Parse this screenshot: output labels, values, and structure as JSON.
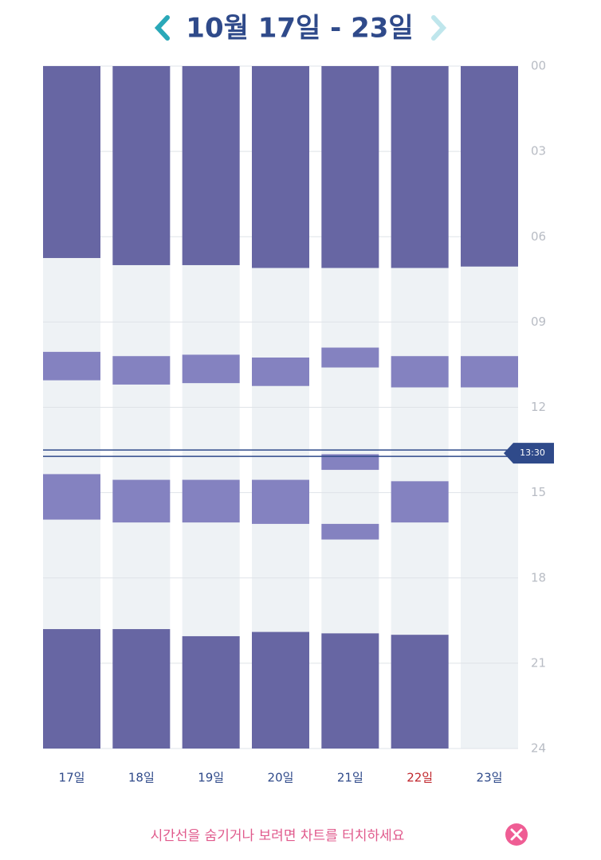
{
  "chart_data": {
    "type": "sleep",
    "title": "10월 17일 - 23일",
    "categories": [
      "17일",
      "18일",
      "19일",
      "20일",
      "21일",
      "22일",
      "23일"
    ],
    "highlight": {
      "index": 5,
      "color": "#c0262c"
    },
    "segments": [
      [
        {
          "start": 0,
          "end": 6.75,
          "color": "#6766a3"
        },
        {
          "start": 10.05,
          "end": 11.05,
          "color": "#8482c0"
        },
        {
          "start": 14.35,
          "end": 15.95,
          "color": "#8482c0"
        },
        {
          "start": 19.8,
          "end": 24,
          "color": "#6766a3"
        }
      ],
      [
        {
          "start": 0,
          "end": 7,
          "color": "#6766a3"
        },
        {
          "start": 10.2,
          "end": 11.2,
          "color": "#8482c0"
        },
        {
          "start": 14.55,
          "end": 16.05,
          "color": "#8482c0"
        },
        {
          "start": 19.8,
          "end": 24,
          "color": "#6766a3"
        }
      ],
      [
        {
          "start": 0,
          "end": 7,
          "color": "#6766a3"
        },
        {
          "start": 10.15,
          "end": 11.15,
          "color": "#8482c0"
        },
        {
          "start": 14.55,
          "end": 16.05,
          "color": "#8482c0"
        },
        {
          "start": 20.05,
          "end": 24,
          "color": "#6766a3"
        }
      ],
      [
        {
          "start": 0,
          "end": 7.1,
          "color": "#6766a3"
        },
        {
          "start": 10.25,
          "end": 11.25,
          "color": "#8482c0"
        },
        {
          "start": 14.55,
          "end": 16.1,
          "color": "#8482c0"
        },
        {
          "start": 19.9,
          "end": 24,
          "color": "#6766a3"
        }
      ],
      [
        {
          "start": 0,
          "end": 7.1,
          "color": "#6766a3"
        },
        {
          "start": 9.9,
          "end": 10.6,
          "color": "#8482c0"
        },
        {
          "start": 13.65,
          "end": 14.2,
          "color": "#8482c0"
        },
        {
          "start": 16.1,
          "end": 16.65,
          "color": "#8482c0"
        },
        {
          "start": 19.95,
          "end": 24,
          "color": "#6766a3"
        }
      ],
      [
        {
          "start": 0,
          "end": 7.1,
          "color": "#6766a3"
        },
        {
          "start": 10.2,
          "end": 11.3,
          "color": "#8482c0"
        },
        {
          "start": 14.6,
          "end": 16.05,
          "color": "#8482c0"
        },
        {
          "start": 20,
          "end": 24,
          "color": "#6766a3"
        }
      ],
      [
        {
          "start": 0,
          "end": 7.05,
          "color": "#6766a3"
        },
        {
          "start": 10.2,
          "end": 11.3,
          "color": "#8482c0"
        }
      ]
    ],
    "ylim": [
      0,
      24
    ],
    "yticks": [
      {
        "value": 0,
        "label": "00"
      },
      {
        "value": 3,
        "label": "03"
      },
      {
        "value": 6,
        "label": "06"
      },
      {
        "value": 9,
        "label": "09"
      },
      12,
      15,
      18,
      21,
      24
    ],
    "grid": true,
    "marker": {
      "value": 13.5,
      "label": "13:30",
      "color": "#2f4a8a"
    },
    "footer": "시간선을 숨기거나 보려면 차트를 터치하세요"
  }
}
